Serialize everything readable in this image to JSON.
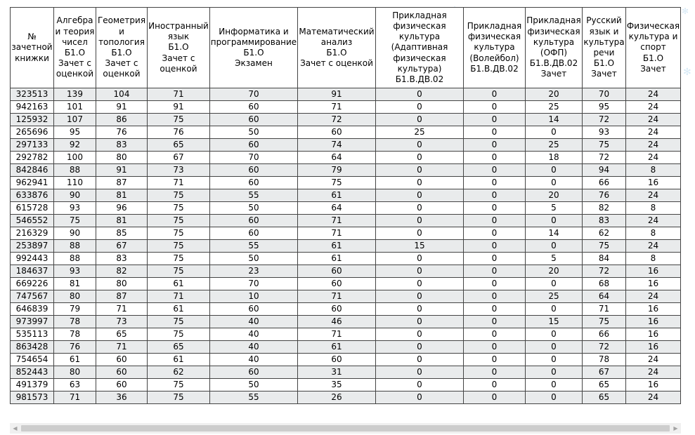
{
  "table": {
    "columns": [
      {
        "lines": [
          "№",
          "зачетной",
          "книжки"
        ]
      },
      {
        "lines": [
          "Алгебра",
          "и теория",
          "чисел",
          "Б1.О",
          "Зачет с",
          "оценкой"
        ]
      },
      {
        "lines": [
          "Геометрия",
          "и",
          "топология",
          "Б1.О",
          "Зачет с",
          "оценкой"
        ]
      },
      {
        "lines": [
          "Иностранный",
          "язык",
          "Б1.О",
          "Зачет с",
          "оценкой"
        ]
      },
      {
        "lines": [
          "Информатика и",
          "программирование",
          "Б1.О",
          "Экзамен"
        ]
      },
      {
        "lines": [
          "Математический",
          "анализ",
          "Б1.О",
          "Зачет с оценкой"
        ]
      },
      {
        "lines": [
          "Прикладная",
          "физическая",
          "культура",
          "(Адаптивная",
          "физическая",
          "культура)",
          "Б1.В.ДВ.02"
        ]
      },
      {
        "lines": [
          "Прикладная",
          "физическая",
          "культура",
          "(Волейбол)",
          "Б1.В.ДВ.02"
        ]
      },
      {
        "lines": [
          "Прикладная",
          "физическая",
          "культура",
          "(ОФП)",
          "Б1.В.ДВ.02",
          "Зачет"
        ]
      },
      {
        "lines": [
          "Русский",
          "язык и",
          "культура",
          "речи",
          "Б1.О",
          "Зачет"
        ]
      },
      {
        "lines": [
          "Физическая",
          "культура и",
          "спорт",
          "Б1.О",
          "Зачет"
        ]
      }
    ],
    "rows": [
      [
        "323513",
        "139",
        "104",
        "71",
        "70",
        "91",
        "0",
        "0",
        "20",
        "70",
        "24"
      ],
      [
        "942163",
        "101",
        "91",
        "91",
        "60",
        "71",
        "0",
        "0",
        "25",
        "95",
        "24"
      ],
      [
        "125932",
        "107",
        "86",
        "75",
        "60",
        "72",
        "0",
        "0",
        "14",
        "72",
        "24"
      ],
      [
        "265696",
        "95",
        "76",
        "76",
        "50",
        "60",
        "25",
        "0",
        "0",
        "93",
        "24"
      ],
      [
        "297133",
        "92",
        "83",
        "65",
        "60",
        "74",
        "0",
        "0",
        "25",
        "75",
        "24"
      ],
      [
        "292782",
        "100",
        "80",
        "67",
        "70",
        "64",
        "0",
        "0",
        "18",
        "72",
        "24"
      ],
      [
        "842846",
        "88",
        "91",
        "73",
        "60",
        "79",
        "0",
        "0",
        "0",
        "94",
        "8"
      ],
      [
        "962941",
        "110",
        "87",
        "71",
        "60",
        "75",
        "0",
        "0",
        "0",
        "66",
        "16"
      ],
      [
        "633876",
        "90",
        "81",
        "75",
        "55",
        "61",
        "0",
        "0",
        "20",
        "76",
        "24"
      ],
      [
        "615728",
        "93",
        "96",
        "75",
        "50",
        "64",
        "0",
        "0",
        "5",
        "82",
        "8"
      ],
      [
        "546552",
        "75",
        "81",
        "75",
        "60",
        "71",
        "0",
        "0",
        "0",
        "83",
        "24"
      ],
      [
        "216329",
        "90",
        "85",
        "75",
        "60",
        "71",
        "0",
        "0",
        "14",
        "62",
        "8"
      ],
      [
        "253897",
        "88",
        "67",
        "75",
        "55",
        "61",
        "15",
        "0",
        "0",
        "75",
        "24"
      ],
      [
        "992443",
        "88",
        "83",
        "75",
        "50",
        "61",
        "0",
        "0",
        "5",
        "84",
        "8"
      ],
      [
        "184637",
        "93",
        "82",
        "75",
        "23",
        "60",
        "0",
        "0",
        "20",
        "72",
        "16"
      ],
      [
        "669226",
        "81",
        "80",
        "61",
        "70",
        "60",
        "0",
        "0",
        "0",
        "68",
        "16"
      ],
      [
        "747567",
        "80",
        "87",
        "71",
        "10",
        "71",
        "0",
        "0",
        "25",
        "64",
        "24"
      ],
      [
        "646839",
        "79",
        "71",
        "61",
        "60",
        "60",
        "0",
        "0",
        "0",
        "71",
        "16"
      ],
      [
        "973997",
        "78",
        "73",
        "75",
        "40",
        "46",
        "0",
        "0",
        "15",
        "75",
        "16"
      ],
      [
        "535113",
        "78",
        "65",
        "75",
        "40",
        "71",
        "0",
        "0",
        "0",
        "66",
        "16"
      ],
      [
        "863428",
        "76",
        "71",
        "65",
        "40",
        "61",
        "0",
        "0",
        "0",
        "72",
        "16"
      ],
      [
        "754654",
        "61",
        "60",
        "61",
        "40",
        "60",
        "0",
        "0",
        "0",
        "78",
        "24"
      ],
      [
        "852443",
        "80",
        "60",
        "62",
        "60",
        "31",
        "0",
        "0",
        "0",
        "67",
        "24"
      ],
      [
        "491379",
        "63",
        "60",
        "75",
        "50",
        "35",
        "0",
        "0",
        "0",
        "65",
        "16"
      ],
      [
        "981573",
        "71",
        "36",
        "75",
        "55",
        "26",
        "0",
        "0",
        "0",
        "65",
        "24"
      ]
    ]
  },
  "scrollbar": {
    "left_arrow_icon": "triangle-left-icon",
    "right_arrow_icon": "triangle-right-icon",
    "left_arrow_glyph": "◀",
    "right_arrow_glyph": "▶"
  },
  "colors": {
    "stripe": "#e9ebec",
    "border": "#444444",
    "snowflake": "#d8eaf6"
  }
}
